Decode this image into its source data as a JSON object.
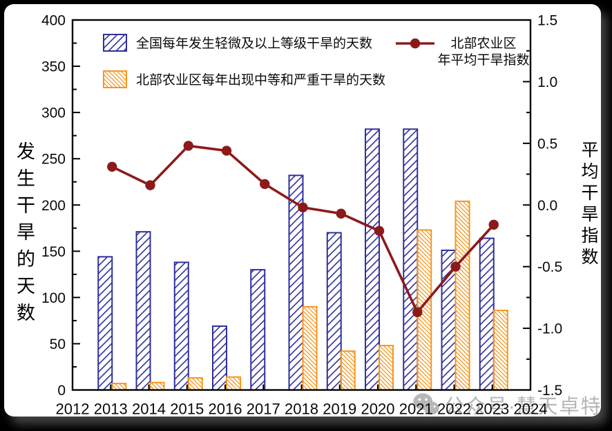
{
  "legend": {
    "bar1": "全国每年发生轻微及以上等级干旱的天数",
    "bar2": "北部农业区每年出现中等和严重干旱的天数",
    "line_label_1": "北部农业区",
    "line_label_2": "年平均干旱指数"
  },
  "watermark": {
    "icon": "wechat-icon",
    "text": "公众号·慧天卓特",
    "color": "#A3A3A3"
  },
  "chart_data": {
    "type": "bar+line",
    "x": [
      2013,
      2014,
      2015,
      2016,
      2017,
      2018,
      2019,
      2020,
      2021,
      2022,
      2023
    ],
    "xlim": [
      2012,
      2024
    ],
    "left_axis": {
      "label": "发生干旱的天数",
      "lim": [
        0,
        400
      ],
      "major_step": 50,
      "minor_step": 25,
      "tick_labels": [
        "0",
        "50",
        "100",
        "150",
        "200",
        "250",
        "300",
        "350",
        "400"
      ]
    },
    "right_axis": {
      "label": "平均干旱指数",
      "lim": [
        -1.5,
        1.5
      ],
      "major_step": 0.5,
      "minor_step": 0.25,
      "tick_labels": [
        "-1.5",
        "-1.0",
        "-0.5",
        "0.0",
        "0.5",
        "1.0",
        "1.5"
      ]
    },
    "x_tick_labels": [
      "2012",
      "2013",
      "2014",
      "2015",
      "2016",
      "2017",
      "2018",
      "2019",
      "2020",
      "2021",
      "2022",
      "2023",
      "2024"
    ],
    "grid": false,
    "legend_position": "inside-top-left",
    "series": [
      {
        "name": "全国每年发生轻微及以上等级干旱的天数",
        "type": "bar",
        "axis": "left",
        "color": "#2F2F9D",
        "hatch": "/",
        "values": [
          144,
          171,
          138,
          69,
          130,
          232,
          170,
          282,
          282,
          151,
          164
        ]
      },
      {
        "name": "北部农业区每年出现中等和严重干旱的天数",
        "type": "bar",
        "axis": "left",
        "color": "#F5961E",
        "hatch": "\\",
        "values": [
          7,
          8,
          13,
          14,
          0,
          90,
          42,
          48,
          173,
          204,
          86
        ]
      },
      {
        "name": "北部农业区年平均干旱指数",
        "type": "line",
        "axis": "right",
        "color": "#8C1A1A",
        "marker": "circle",
        "values": [
          0.31,
          0.16,
          0.48,
          0.44,
          0.17,
          -0.02,
          -0.07,
          -0.21,
          -0.87,
          -0.5,
          -0.16
        ]
      }
    ]
  }
}
